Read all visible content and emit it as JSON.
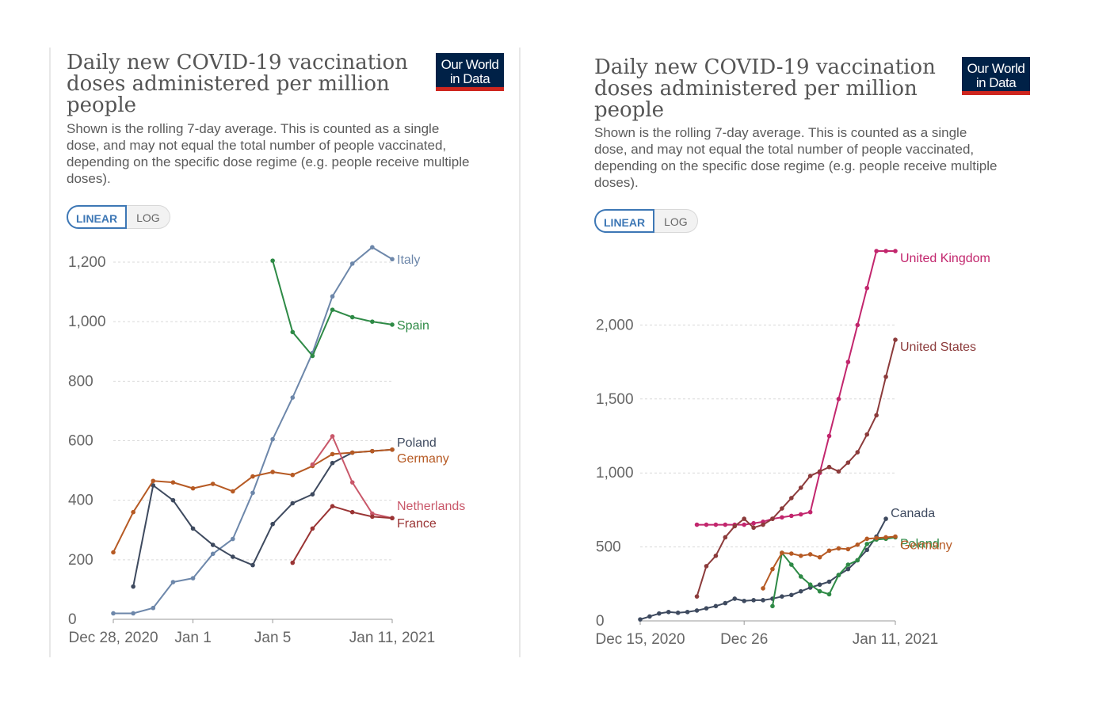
{
  "charts": [
    {
      "title": "Daily new COVID-19 vaccination doses administered per million people",
      "subtitle": "Shown is the rolling 7-day average. This is counted as a single dose, and may not equal the total number of people vaccinated, depending on the specific dose regime (e.g. people receive multiple doses).",
      "logo": {
        "line1": "Our World",
        "line2": "in Data"
      },
      "scale_toggle": {
        "linear": "LINEAR",
        "log": "LOG",
        "selected": "LINEAR"
      }
    },
    {
      "title": "Daily new COVID-19 vaccination doses administered per million people",
      "subtitle": "Shown is the rolling 7-day average. This is counted as a single dose, and may not equal the total number of people vaccinated, depending on the specific dose regime (e.g. people receive multiple doses).",
      "logo": {
        "line1": "Our World",
        "line2": "in Data"
      },
      "scale_toggle": {
        "linear": "LINEAR",
        "log": "LOG",
        "selected": "LINEAR"
      }
    }
  ],
  "chart_data": [
    {
      "type": "line",
      "x_start": "2020-12-28",
      "x_ticks": [
        {
          "day": 0,
          "label": "Dec 28, 2020"
        },
        {
          "day": 4,
          "label": "Jan 1"
        },
        {
          "day": 8,
          "label": "Jan 5"
        },
        {
          "day": 14,
          "label": "Jan 11, 2021"
        }
      ],
      "xlim": [
        0,
        14
      ],
      "ylim": [
        0,
        1200
      ],
      "y_ticks": [
        0,
        200,
        400,
        600,
        800,
        1000,
        1200
      ],
      "y_tick_labels": [
        "0",
        "200",
        "400",
        "600",
        "800",
        "1,000",
        "1,200"
      ],
      "grid": "horizontal dashed",
      "series": [
        {
          "name": "Italy",
          "color": "#6d87aa",
          "x": [
            0,
            1,
            2,
            3,
            4,
            5,
            6,
            7,
            8,
            9,
            10,
            11,
            12,
            13,
            14
          ],
          "y": [
            20,
            20,
            38,
            125,
            138,
            220,
            270,
            425,
            605,
            745,
            895,
            1085,
            1195,
            1250,
            1210
          ]
        },
        {
          "name": "Spain",
          "color": "#2e8a46",
          "x": [
            8,
            9,
            10,
            11,
            12,
            13,
            14
          ],
          "y": [
            1205,
            965,
            885,
            1040,
            1015,
            1000,
            990
          ]
        },
        {
          "name": "Poland",
          "color": "#3e4a5f",
          "x": [
            1,
            2,
            3,
            4,
            5,
            6,
            7,
            8,
            9,
            10,
            11,
            12,
            13,
            14
          ],
          "y": [
            110,
            450,
            400,
            305,
            250,
            210,
            182,
            320,
            390,
            420,
            525,
            560,
            565,
            570
          ]
        },
        {
          "name": "Germany",
          "color": "#b65a24",
          "x": [
            0,
            1,
            2,
            3,
            4,
            5,
            6,
            7,
            8,
            9,
            10,
            11,
            12,
            13,
            14
          ],
          "y": [
            225,
            360,
            465,
            460,
            440,
            455,
            430,
            480,
            495,
            485,
            515,
            555,
            560,
            565,
            570
          ]
        },
        {
          "name": "Netherlands",
          "color": "#c9586a",
          "x": [
            10,
            11,
            12,
            13,
            14
          ],
          "y": [
            520,
            615,
            460,
            355,
            340
          ]
        },
        {
          "name": "France",
          "color": "#9a3434",
          "x": [
            9,
            10,
            11,
            12,
            13,
            14
          ],
          "y": [
            190,
            305,
            380,
            360,
            345,
            340
          ]
        }
      ]
    },
    {
      "type": "line",
      "x_start": "2020-12-15",
      "x_ticks": [
        {
          "day": 0,
          "label": "Dec 15, 2020"
        },
        {
          "day": 11,
          "label": "Dec 26"
        },
        {
          "day": 27,
          "label": "Jan 11, 2021"
        }
      ],
      "xlim": [
        0,
        27
      ],
      "ylim": [
        0,
        2500
      ],
      "y_ticks": [
        0,
        500,
        1000,
        1500,
        2000
      ],
      "y_tick_labels": [
        "0",
        "500",
        "1,000",
        "1,500",
        "2,000"
      ],
      "grid": "horizontal dashed",
      "series": [
        {
          "name": "United Kingdom",
          "color": "#c2266d",
          "x": [
            6,
            7,
            8,
            9,
            10,
            11,
            12,
            13,
            14,
            15,
            16,
            17,
            18,
            19,
            20,
            21,
            22,
            23,
            24,
            25,
            26,
            27
          ],
          "y": [
            650,
            650,
            650,
            650,
            650,
            650,
            660,
            670,
            690,
            700,
            710,
            720,
            735,
            1000,
            1250,
            1500,
            1750,
            2000,
            2250,
            2500,
            2500,
            2500
          ]
        },
        {
          "name": "United States",
          "color": "#8c3b3b",
          "x": [
            6,
            7,
            8,
            9,
            10,
            11,
            12,
            13,
            14,
            15,
            16,
            17,
            18,
            19,
            20,
            21,
            22,
            23,
            24,
            25,
            26,
            27
          ],
          "y": [
            165,
            370,
            440,
            565,
            640,
            690,
            630,
            650,
            690,
            760,
            830,
            900,
            980,
            1010,
            1040,
            1010,
            1070,
            1140,
            1260,
            1390,
            1650,
            1900
          ]
        },
        {
          "name": "Canada",
          "color": "#3e4a5f",
          "x": [
            0,
            1,
            2,
            3,
            4,
            5,
            6,
            7,
            8,
            9,
            10,
            11,
            12,
            13,
            14,
            15,
            16,
            17,
            18,
            19,
            20,
            21,
            22,
            23,
            24,
            25,
            26
          ],
          "y": [
            10,
            30,
            50,
            60,
            55,
            60,
            70,
            85,
            100,
            120,
            150,
            135,
            140,
            140,
            150,
            165,
            175,
            200,
            225,
            245,
            265,
            310,
            350,
            410,
            480,
            570,
            690
          ]
        },
        {
          "name": "Poland",
          "color": "#2e8a46",
          "x": [
            14,
            15,
            16,
            17,
            18,
            19,
            20,
            21,
            22,
            23,
            24,
            25,
            26,
            27
          ],
          "y": [
            100,
            460,
            380,
            300,
            245,
            200,
            180,
            310,
            380,
            410,
            520,
            550,
            555,
            565
          ]
        },
        {
          "name": "Germany",
          "color": "#b65a24",
          "x": [
            13,
            14,
            15,
            16,
            17,
            18,
            19,
            20,
            21,
            22,
            23,
            24,
            25,
            26,
            27
          ],
          "y": [
            220,
            350,
            460,
            455,
            440,
            450,
            430,
            475,
            490,
            485,
            515,
            555,
            560,
            565,
            570
          ]
        }
      ]
    }
  ]
}
